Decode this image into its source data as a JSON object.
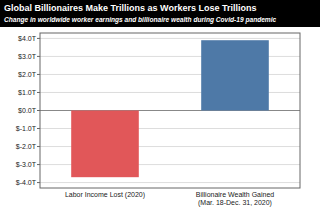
{
  "chart_data": {
    "type": "bar",
    "title": "Global Billionaires Make Trillions as Workers Lose Trillions",
    "subtitle": "Change in worldwide worker earnings and billionaire wealth during Covid-19 pandemic",
    "categories": [
      "Labor Income Lost (2020)",
      "Billionaire Wealth Gained\n(Mar. 18-Dec. 31, 2020)"
    ],
    "values": [
      -3.7,
      3.9
    ],
    "colors": [
      "#e15759",
      "#4e79a7"
    ],
    "ylim": [
      -4.3,
      4.3
    ],
    "yticks": [
      {
        "value": 4,
        "label": "$4.0T"
      },
      {
        "value": 3,
        "label": "$3.0T"
      },
      {
        "value": 2,
        "label": "$2.0T"
      },
      {
        "value": 1,
        "label": "$1.0T"
      },
      {
        "value": 0,
        "label": "$0.0T"
      },
      {
        "value": -1,
        "label": "$-1.0T"
      },
      {
        "value": -2,
        "label": "$-2.0T"
      },
      {
        "value": -3,
        "label": "$-3.0T"
      },
      {
        "value": -4,
        "label": "$-4.0T"
      }
    ],
    "grid": true
  }
}
